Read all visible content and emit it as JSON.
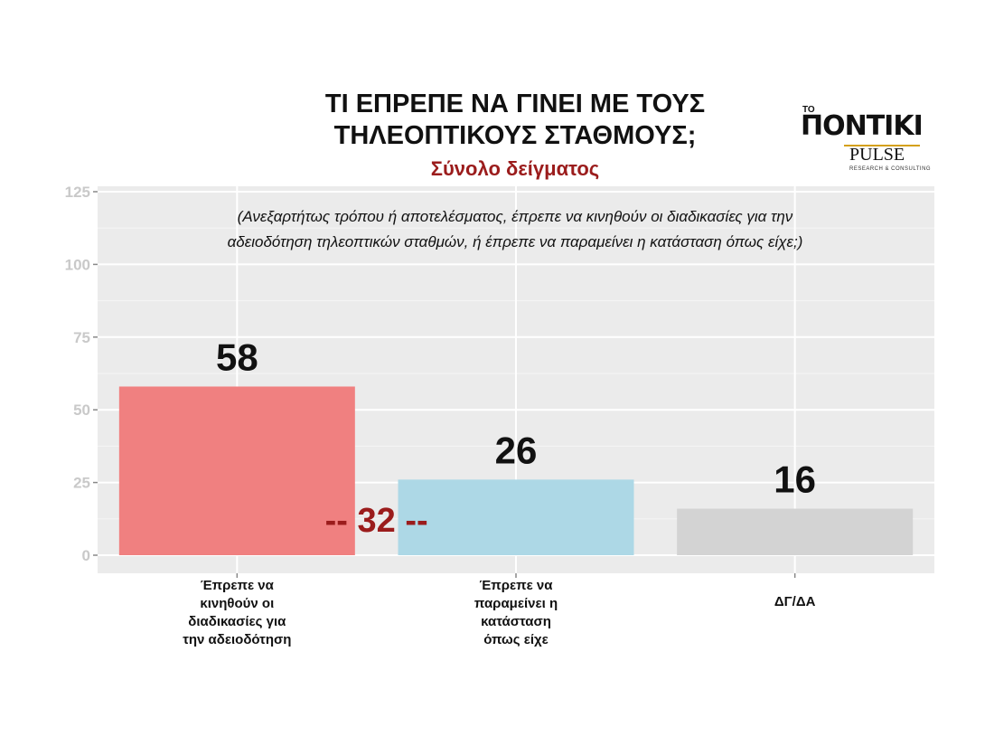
{
  "header": {
    "title_line1": "ΤΙ ΕΠΡΕΠΕ ΝΑ ΓΙΝΕΙ ΜΕ ΤΟΥΣ",
    "title_line2": "ΤΗΛΕΟΠΤΙΚΟΥΣ ΣΤΑΘΜΟΥΣ;",
    "subtitle": "Σύνολο δείγματος"
  },
  "logo": {
    "small_text": "ΤΟ",
    "brand": "ΠΟΝΤΙΚΙ",
    "partner": "PULSE",
    "partner_tagline": "RESEARCH & CONSULTING"
  },
  "question": {
    "line1": "(Ανεξαρτήτως τρόπου ή αποτελέσματος, έπρεπε να κινηθούν οι διαδικασίες για την",
    "line2": "αδειοδότηση τηλεοπτικών σταθμών, ή έπρεπε να παραμείνει η κατάσταση όπως είχε;)"
  },
  "colors": {
    "bar1": "#f08080",
    "bar2": "#add8e6",
    "bar3": "#d3d3d3",
    "panel": "#ebebeb",
    "difference": "#9b1c1c",
    "subtitle": "#9b1c1c"
  },
  "chart_data": {
    "type": "bar",
    "categories": [
      [
        "Έπρεπε να",
        "κινηθούν οι",
        "διαδικασίες για",
        "την αδειοδότηση"
      ],
      [
        "Έπρεπε να",
        "παραμείνει η",
        "κατάσταση",
        "όπως είχε"
      ],
      [
        "ΔΓ/ΔΑ"
      ]
    ],
    "values": [
      58,
      26,
      16
    ],
    "ylim": [
      0,
      125
    ],
    "yticks": [
      0,
      25,
      50,
      75,
      100,
      125
    ],
    "grid": true,
    "legend": "none",
    "annotation": {
      "text": "-- 32 --",
      "value": 32
    }
  }
}
